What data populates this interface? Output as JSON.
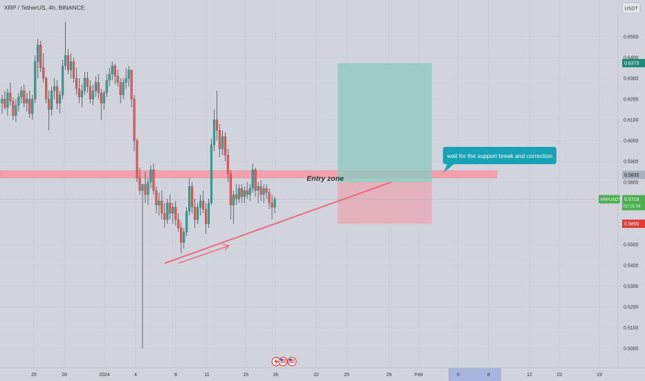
{
  "title": "XRP / TetherUS, 4h, BINANCE",
  "currency_button": "USDT",
  "colors": {
    "background": "#d1d4dc",
    "up": "#26a69a",
    "down": "#ef5350",
    "wick": "#4a4a4a",
    "zone_fill": "#f5a1ad",
    "target_box": "#8fc9bf",
    "stop_box": "#e9a7b3",
    "trendline": "#ef5d76",
    "callout": "#17a3b5",
    "current_price": "#4caf50",
    "target_price": "#1e8c7a",
    "stop_price": "#e53935"
  },
  "annotations": {
    "zone_label": "Entry zone",
    "callout_text": "wait for the support break and correction"
  },
  "price_labels": {
    "target": "0.6373",
    "zone": "0.5835",
    "current": "0.5718",
    "current_symbol": "XRPUSDT",
    "countdown": "02:16:34",
    "stop": "0.5600"
  },
  "chart_data": {
    "type": "candlestick",
    "symbol": "XRPUSDT",
    "interval": "4h",
    "exchange": "BINANCE",
    "y_ticks": [
      "0.6500",
      "0.6400",
      "0.6300",
      "0.6200",
      "0.6100",
      "0.6000",
      "0.5900",
      "0.5800",
      "0.5700",
      "0.5500",
      "0.5400",
      "0.5300",
      "0.5200",
      "0.5100",
      "0.5000"
    ],
    "x_ticks": [
      "25",
      "28",
      "2024",
      "4",
      "8",
      "11",
      "15",
      "18",
      "22",
      "25",
      "29",
      "Feb",
      "5",
      "8",
      "12",
      "15",
      "19"
    ],
    "ylim": [
      0.4965,
      0.658
    ],
    "highlighted_x_range": [
      "5",
      "8"
    ],
    "entry_zone": [
      0.582,
      0.5855
    ],
    "support_line": {
      "from": 0.541,
      "to": 0.58
    },
    "target_level": 0.6373,
    "entry_level": 0.58,
    "stop_level": 0.56,
    "current_price": 0.5718,
    "candles": [
      [
        0.618,
        0.622,
        0.613,
        0.62
      ],
      [
        0.62,
        0.624,
        0.615,
        0.616
      ],
      [
        0.616,
        0.625,
        0.612,
        0.623
      ],
      [
        0.623,
        0.628,
        0.617,
        0.619
      ],
      [
        0.619,
        0.621,
        0.61,
        0.612
      ],
      [
        0.612,
        0.62,
        0.609,
        0.617
      ],
      [
        0.617,
        0.623,
        0.614,
        0.621
      ],
      [
        0.621,
        0.626,
        0.618,
        0.624
      ],
      [
        0.624,
        0.627,
        0.616,
        0.618
      ],
      [
        0.618,
        0.623,
        0.614,
        0.62
      ],
      [
        0.62,
        0.624,
        0.611,
        0.613
      ],
      [
        0.613,
        0.622,
        0.61,
        0.62
      ],
      [
        0.62,
        0.641,
        0.618,
        0.638
      ],
      [
        0.638,
        0.649,
        0.63,
        0.646
      ],
      [
        0.646,
        0.648,
        0.633,
        0.635
      ],
      [
        0.635,
        0.642,
        0.628,
        0.63
      ],
      [
        0.63,
        0.631,
        0.618,
        0.62
      ],
      [
        0.62,
        0.624,
        0.605,
        0.615
      ],
      [
        0.615,
        0.626,
        0.612,
        0.624
      ],
      [
        0.624,
        0.63,
        0.62,
        0.626
      ],
      [
        0.626,
        0.629,
        0.615,
        0.618
      ],
      [
        0.618,
        0.624,
        0.613,
        0.622
      ],
      [
        0.622,
        0.639,
        0.62,
        0.636
      ],
      [
        0.636,
        0.657,
        0.634,
        0.641
      ],
      [
        0.641,
        0.644,
        0.632,
        0.634
      ],
      [
        0.634,
        0.642,
        0.63,
        0.638
      ],
      [
        0.638,
        0.64,
        0.628,
        0.63
      ],
      [
        0.63,
        0.635,
        0.622,
        0.625
      ],
      [
        0.625,
        0.63,
        0.618,
        0.621
      ],
      [
        0.621,
        0.627,
        0.616,
        0.624
      ],
      [
        0.624,
        0.633,
        0.622,
        0.63
      ],
      [
        0.63,
        0.633,
        0.623,
        0.626
      ],
      [
        0.626,
        0.629,
        0.618,
        0.62
      ],
      [
        0.62,
        0.627,
        0.617,
        0.624
      ],
      [
        0.624,
        0.631,
        0.621,
        0.628
      ],
      [
        0.628,
        0.632,
        0.62,
        0.623
      ],
      [
        0.623,
        0.625,
        0.61,
        0.618
      ],
      [
        0.618,
        0.624,
        0.615,
        0.623
      ],
      [
        0.623,
        0.632,
        0.621,
        0.629
      ],
      [
        0.629,
        0.635,
        0.626,
        0.632
      ],
      [
        0.632,
        0.638,
        0.629,
        0.636
      ],
      [
        0.636,
        0.637,
        0.627,
        0.631
      ],
      [
        0.631,
        0.634,
        0.626,
        0.628
      ],
      [
        0.628,
        0.63,
        0.618,
        0.622
      ],
      [
        0.622,
        0.63,
        0.62,
        0.628
      ],
      [
        0.628,
        0.635,
        0.625,
        0.63
      ],
      [
        0.63,
        0.636,
        0.626,
        0.634
      ],
      [
        0.634,
        0.634,
        0.616,
        0.62
      ],
      [
        0.62,
        0.622,
        0.595,
        0.6
      ],
      [
        0.6,
        0.601,
        0.58,
        0.582
      ],
      [
        0.582,
        0.587,
        0.574,
        0.576
      ],
      [
        0.576,
        0.578,
        0.5,
        0.579
      ],
      [
        0.579,
        0.585,
        0.57,
        0.574
      ],
      [
        0.574,
        0.582,
        0.569,
        0.58
      ],
      [
        0.58,
        0.588,
        0.577,
        0.586
      ],
      [
        0.586,
        0.589,
        0.574,
        0.576
      ],
      [
        0.576,
        0.578,
        0.565,
        0.569
      ],
      [
        0.569,
        0.575,
        0.564,
        0.571
      ],
      [
        0.571,
        0.576,
        0.562,
        0.565
      ],
      [
        0.565,
        0.57,
        0.558,
        0.562
      ],
      [
        0.562,
        0.572,
        0.56,
        0.57
      ],
      [
        0.57,
        0.574,
        0.562,
        0.565
      ],
      [
        0.565,
        0.57,
        0.56,
        0.568
      ],
      [
        0.568,
        0.571,
        0.559,
        0.562
      ],
      [
        0.562,
        0.565,
        0.556,
        0.558
      ],
      [
        0.558,
        0.561,
        0.546,
        0.551
      ],
      [
        0.551,
        0.558,
        0.548,
        0.556
      ],
      [
        0.556,
        0.568,
        0.554,
        0.566
      ],
      [
        0.566,
        0.582,
        0.564,
        0.578
      ],
      [
        0.578,
        0.58,
        0.565,
        0.568
      ],
      [
        0.568,
        0.572,
        0.558,
        0.562
      ],
      [
        0.562,
        0.57,
        0.56,
        0.568
      ],
      [
        0.568,
        0.574,
        0.564,
        0.571
      ],
      [
        0.571,
        0.576,
        0.565,
        0.567
      ],
      [
        0.567,
        0.57,
        0.555,
        0.56
      ],
      [
        0.56,
        0.572,
        0.558,
        0.57
      ],
      [
        0.57,
        0.601,
        0.569,
        0.598
      ],
      [
        0.598,
        0.615,
        0.595,
        0.61
      ],
      [
        0.61,
        0.624,
        0.6,
        0.605
      ],
      [
        0.605,
        0.608,
        0.592,
        0.596
      ],
      [
        0.596,
        0.605,
        0.593,
        0.602
      ],
      [
        0.602,
        0.604,
        0.59,
        0.593
      ],
      [
        0.593,
        0.596,
        0.58,
        0.584
      ],
      [
        0.584,
        0.586,
        0.562,
        0.569
      ],
      [
        0.569,
        0.576,
        0.56,
        0.574
      ],
      [
        0.574,
        0.579,
        0.569,
        0.572
      ],
      [
        0.572,
        0.579,
        0.57,
        0.577
      ],
      [
        0.577,
        0.579,
        0.57,
        0.573
      ],
      [
        0.573,
        0.578,
        0.57,
        0.576
      ],
      [
        0.576,
        0.58,
        0.572,
        0.574
      ],
      [
        0.574,
        0.579,
        0.571,
        0.577
      ],
      [
        0.577,
        0.589,
        0.575,
        0.586
      ],
      [
        0.586,
        0.587,
        0.573,
        0.576
      ],
      [
        0.576,
        0.58,
        0.57,
        0.578
      ],
      [
        0.578,
        0.581,
        0.571,
        0.574
      ],
      [
        0.574,
        0.579,
        0.57,
        0.577
      ],
      [
        0.577,
        0.579,
        0.572,
        0.575
      ],
      [
        0.575,
        0.577,
        0.567,
        0.57
      ],
      [
        0.57,
        0.574,
        0.562,
        0.568
      ],
      [
        0.568,
        0.573,
        0.565,
        0.5718
      ]
    ]
  }
}
